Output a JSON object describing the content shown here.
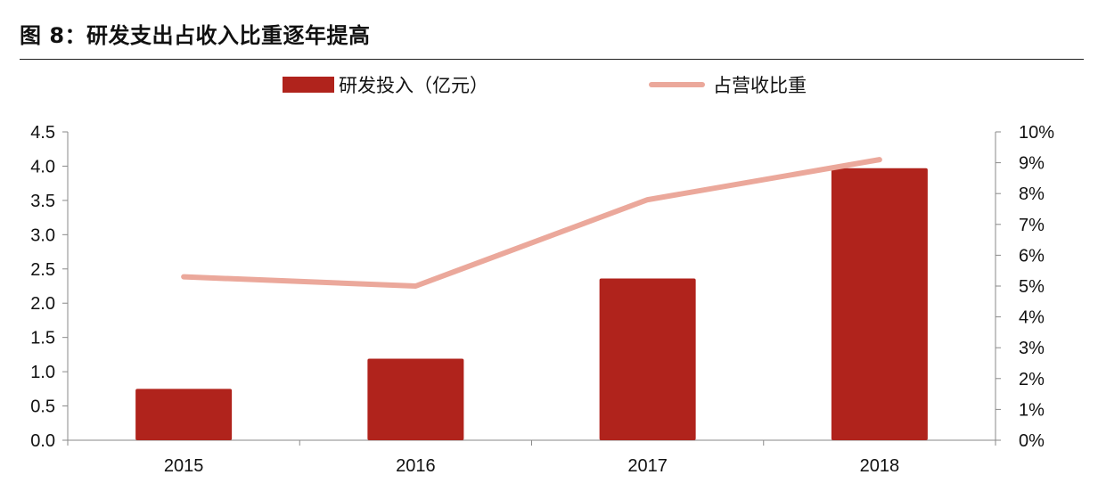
{
  "figure": {
    "title": "图 8：研发支出占收入比重逐年提高"
  },
  "chart_data": {
    "type": "bar",
    "categories": [
      "2015",
      "2016",
      "2017",
      "2018"
    ],
    "series": [
      {
        "name": "研发投入（亿元）",
        "type": "bar",
        "axis": "left",
        "color": "#B0231C",
        "values": [
          0.75,
          1.19,
          2.36,
          3.97
        ]
      },
      {
        "name": "占营收比重",
        "type": "line",
        "axis": "right",
        "color": "#EBA89B",
        "values": [
          5.3,
          5.0,
          7.8,
          9.1
        ]
      }
    ],
    "y_left": {
      "label": "",
      "ylim": [
        0,
        4.5
      ],
      "ticks": [
        "0.0",
        "0.5",
        "1.0",
        "1.5",
        "2.0",
        "2.5",
        "3.0",
        "3.5",
        "4.0",
        "4.5"
      ]
    },
    "y_right": {
      "label": "",
      "ylim": [
        0,
        10
      ],
      "unit": "%",
      "ticks": [
        "0%",
        "1%",
        "2%",
        "3%",
        "4%",
        "5%",
        "6%",
        "7%",
        "8%",
        "9%",
        "10%"
      ]
    },
    "legend_placement": "top-center",
    "grid": false
  }
}
